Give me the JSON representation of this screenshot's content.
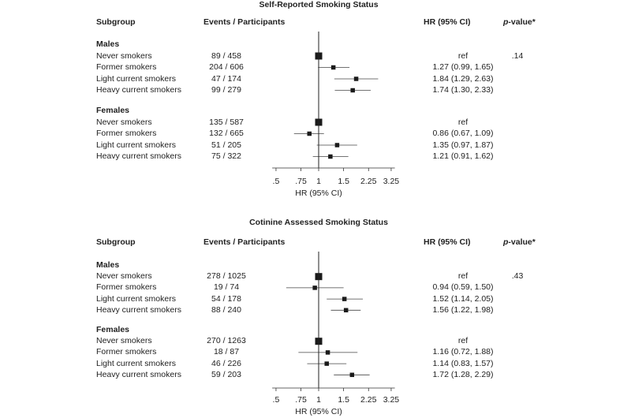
{
  "chart_data": [
    {
      "type": "forest",
      "title": "Self-Reported Smoking Status",
      "xlabel": "HR (95% CI)",
      "xscale": "log",
      "xticks": [
        ".5",
        ".75",
        "1",
        "1.5",
        "2.25",
        "3.25"
      ],
      "xtick_values": [
        0.5,
        0.75,
        1,
        1.5,
        2.25,
        3.25
      ],
      "reference_line": 1,
      "headers": {
        "subgroup": "Subgroup",
        "events": "Events / Participants",
        "hr": "HR (95% CI)",
        "p_italic": "p",
        "p_rest": "-value*"
      },
      "groups": [
        {
          "name": "Males",
          "p_value": ".14",
          "rows": [
            {
              "label": "Never smokers",
              "events": "89 / 458",
              "hr_text": "ref",
              "hr": 1,
              "lo": null,
              "hi": null,
              "ref": true
            },
            {
              "label": "Former smokers",
              "events": "204 / 606",
              "hr_text": "1.27 (0.99, 1.65)",
              "hr": 1.27,
              "lo": 0.99,
              "hi": 1.65
            },
            {
              "label": "Light current smokers",
              "events": "47 / 174",
              "hr_text": "1.84 (1.29, 2.63)",
              "hr": 1.84,
              "lo": 1.29,
              "hi": 2.63
            },
            {
              "label": "Heavy current smokers",
              "events": "99 / 279",
              "hr_text": "1.74 (1.30, 2.33)",
              "hr": 1.74,
              "lo": 1.3,
              "hi": 2.33
            }
          ]
        },
        {
          "name": "Females",
          "p_value": "",
          "rows": [
            {
              "label": "Never smokers",
              "events": "135 / 587",
              "hr_text": "ref",
              "hr": 1,
              "lo": null,
              "hi": null,
              "ref": true
            },
            {
              "label": "Former smokers",
              "events": "132 / 665",
              "hr_text": "0.86 (0.67, 1.09)",
              "hr": 0.86,
              "lo": 0.67,
              "hi": 1.09
            },
            {
              "label": "Light current smokers",
              "events": "51 / 205",
              "hr_text": "1.35 (0.97, 1.87)",
              "hr": 1.35,
              "lo": 0.97,
              "hi": 1.87
            },
            {
              "label": "Heavy current smokers",
              "events": "75 / 322",
              "hr_text": "1.21 (0.91, 1.62)",
              "hr": 1.21,
              "lo": 0.91,
              "hi": 1.62
            }
          ]
        }
      ]
    },
    {
      "type": "forest",
      "title": "Cotinine Assessed Smoking Status",
      "xlabel": "HR (95% CI)",
      "xscale": "log",
      "xticks": [
        ".5",
        ".75",
        "1",
        "1.5",
        "2.25",
        "3.25"
      ],
      "xtick_values": [
        0.5,
        0.75,
        1,
        1.5,
        2.25,
        3.25
      ],
      "reference_line": 1,
      "headers": {
        "subgroup": "Subgroup",
        "events": "Events / Participants",
        "hr": "HR (95% CI)",
        "p_italic": "p",
        "p_rest": "-value*"
      },
      "groups": [
        {
          "name": "Males",
          "p_value": ".43",
          "rows": [
            {
              "label": "Never smokers",
              "events": "278 / 1025",
              "hr_text": "ref",
              "hr": 1,
              "lo": null,
              "hi": null,
              "ref": true
            },
            {
              "label": "Former smokers",
              "events": "19 / 74",
              "hr_text": "0.94 (0.59, 1.50)",
              "hr": 0.94,
              "lo": 0.59,
              "hi": 1.5
            },
            {
              "label": "Light current smokers",
              "events": "54 / 178",
              "hr_text": "1.52 (1.14, 2.05)",
              "hr": 1.52,
              "lo": 1.14,
              "hi": 2.05
            },
            {
              "label": "Heavy current smokers",
              "events": "88 / 240",
              "hr_text": "1.56 (1.22, 1.98)",
              "hr": 1.56,
              "lo": 1.22,
              "hi": 1.98
            }
          ]
        },
        {
          "name": "Females",
          "p_value": "",
          "rows": [
            {
              "label": "Never smokers",
              "events": "270 / 1263",
              "hr_text": "ref",
              "hr": 1,
              "lo": null,
              "hi": null,
              "ref": true
            },
            {
              "label": "Former smokers",
              "events": "18 / 87",
              "hr_text": "1.16 (0.72, 1.88)",
              "hr": 1.16,
              "lo": 0.72,
              "hi": 1.88
            },
            {
              "label": "Light current smokers",
              "events": "46 / 226",
              "hr_text": "1.14 (0.83, 1.57)",
              "hr": 1.14,
              "lo": 0.83,
              "hi": 1.57
            },
            {
              "label": "Heavy current smokers",
              "events": "59 / 203",
              "hr_text": "1.72 (1.28, 2.29)",
              "hr": 1.72,
              "lo": 1.28,
              "hi": 2.29
            }
          ]
        }
      ]
    }
  ]
}
